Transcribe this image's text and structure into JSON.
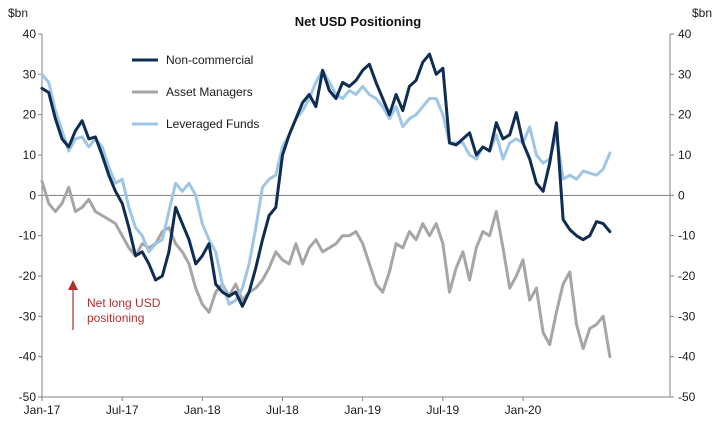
{
  "chart_data": {
    "type": "line",
    "title": "Net USD Positioning",
    "y_unit_left": "$bn",
    "y_unit_right": "$bn",
    "ylim": [
      -50,
      40
    ],
    "yticks": [
      40,
      30,
      20,
      10,
      0,
      -10,
      -20,
      -30,
      -40,
      -50
    ],
    "xlim": [
      0,
      47
    ],
    "x_unit": "months since Jan-17",
    "x_ticks": [
      {
        "x": 0,
        "label": "Jan-17"
      },
      {
        "x": 6,
        "label": "Jul-17"
      },
      {
        "x": 12,
        "label": "Jan-18"
      },
      {
        "x": 18,
        "label": "Jul-18"
      },
      {
        "x": 24,
        "label": "Jan-19"
      },
      {
        "x": 30,
        "label": "Jul-19"
      },
      {
        "x": 36,
        "label": "Jan-20"
      }
    ],
    "grid": false,
    "legend_position": "top-left",
    "annotation": {
      "lines": [
        "Net long USD",
        "positioning"
      ],
      "arrow": "up",
      "color": "#b03030"
    },
    "series": [
      {
        "name": "Non-commercial",
        "color": "#0f2d52",
        "points": [
          [
            0,
            26.5
          ],
          [
            0.5,
            25.5
          ],
          [
            1,
            19
          ],
          [
            1.5,
            14
          ],
          [
            2,
            12
          ],
          [
            2.5,
            16
          ],
          [
            3,
            18.5
          ],
          [
            3.5,
            14
          ],
          [
            4,
            14.5
          ],
          [
            4.5,
            10
          ],
          [
            5,
            5
          ],
          [
            5.5,
            1
          ],
          [
            6,
            -2
          ],
          [
            6.5,
            -8
          ],
          [
            7,
            -15
          ],
          [
            7.5,
            -14
          ],
          [
            8,
            -17
          ],
          [
            8.5,
            -21
          ],
          [
            9,
            -20
          ],
          [
            9.5,
            -14
          ],
          [
            10,
            -3
          ],
          [
            10.5,
            -7
          ],
          [
            11,
            -11
          ],
          [
            11.5,
            -17
          ],
          [
            12,
            -15
          ],
          [
            12.5,
            -12
          ],
          [
            13,
            -22
          ],
          [
            13.5,
            -24
          ],
          [
            14,
            -25
          ],
          [
            14.5,
            -24
          ],
          [
            15,
            -27.5
          ],
          [
            15.5,
            -24
          ],
          [
            16,
            -18
          ],
          [
            16.5,
            -11
          ],
          [
            17,
            -5
          ],
          [
            17.5,
            -3
          ],
          [
            18,
            10
          ],
          [
            18.5,
            15
          ],
          [
            19,
            19
          ],
          [
            19.5,
            23
          ],
          [
            20,
            25
          ],
          [
            20.5,
            22
          ],
          [
            21,
            31
          ],
          [
            21.5,
            26
          ],
          [
            22,
            24
          ],
          [
            22.5,
            28
          ],
          [
            23,
            27
          ],
          [
            23.5,
            28.5
          ],
          [
            24,
            31
          ],
          [
            24.5,
            32.5
          ],
          [
            25,
            28
          ],
          [
            25.5,
            24
          ],
          [
            26,
            20
          ],
          [
            26.5,
            25
          ],
          [
            27,
            21
          ],
          [
            27.5,
            27
          ],
          [
            28,
            28.5
          ],
          [
            28.5,
            33
          ],
          [
            29,
            35
          ],
          [
            29.5,
            30
          ],
          [
            30,
            31.5
          ],
          [
            30.5,
            13
          ],
          [
            31,
            12.5
          ],
          [
            31.5,
            14
          ],
          [
            32,
            15.5
          ],
          [
            32.5,
            10
          ],
          [
            33,
            12
          ],
          [
            33.5,
            11
          ],
          [
            34,
            18
          ],
          [
            34.5,
            14
          ],
          [
            35,
            15
          ],
          [
            35.5,
            20.5
          ],
          [
            36,
            13
          ],
          [
            36.5,
            9
          ],
          [
            37,
            3
          ],
          [
            37.5,
            1
          ],
          [
            38,
            8
          ],
          [
            38.5,
            18
          ],
          [
            39,
            -6
          ],
          [
            39.5,
            -8.5
          ],
          [
            40,
            -10
          ],
          [
            40.5,
            -11
          ],
          [
            41,
            -10
          ],
          [
            41.5,
            -6.5
          ],
          [
            42,
            -7
          ],
          [
            42.5,
            -9
          ]
        ]
      },
      {
        "name": "Asset Managers",
        "color": "#a6a6a6",
        "points": [
          [
            0,
            3.5
          ],
          [
            0.5,
            -2
          ],
          [
            1,
            -4
          ],
          [
            1.5,
            -2
          ],
          [
            2,
            2
          ],
          [
            2.5,
            -4
          ],
          [
            3,
            -3
          ],
          [
            3.5,
            -1
          ],
          [
            4,
            -4
          ],
          [
            4.5,
            -5
          ],
          [
            5,
            -6
          ],
          [
            5.5,
            -7
          ],
          [
            6,
            -10
          ],
          [
            6.5,
            -13
          ],
          [
            7,
            -15
          ],
          [
            7.5,
            -12
          ],
          [
            8,
            -13
          ],
          [
            8.5,
            -12
          ],
          [
            9,
            -9
          ],
          [
            9.5,
            -8
          ],
          [
            10,
            -12
          ],
          [
            10.5,
            -14
          ],
          [
            11,
            -17
          ],
          [
            11.5,
            -23
          ],
          [
            12,
            -27
          ],
          [
            12.5,
            -29
          ],
          [
            13,
            -24
          ],
          [
            13.5,
            -22
          ],
          [
            14,
            -25
          ],
          [
            14.5,
            -22
          ],
          [
            15,
            -26
          ],
          [
            15.5,
            -24
          ],
          [
            16,
            -23
          ],
          [
            16.5,
            -21
          ],
          [
            17,
            -18
          ],
          [
            17.5,
            -14
          ],
          [
            18,
            -16
          ],
          [
            18.5,
            -17
          ],
          [
            19,
            -12
          ],
          [
            19.5,
            -17
          ],
          [
            20,
            -13
          ],
          [
            20.5,
            -11
          ],
          [
            21,
            -14
          ],
          [
            21.5,
            -13
          ],
          [
            22,
            -12
          ],
          [
            22.5,
            -10
          ],
          [
            23,
            -10
          ],
          [
            23.5,
            -9
          ],
          [
            24,
            -12
          ],
          [
            24.5,
            -17
          ],
          [
            25,
            -22
          ],
          [
            25.5,
            -24
          ],
          [
            26,
            -19
          ],
          [
            26.5,
            -12
          ],
          [
            27,
            -13
          ],
          [
            27.5,
            -9
          ],
          [
            28,
            -11
          ],
          [
            28.5,
            -7
          ],
          [
            29,
            -10
          ],
          [
            29.5,
            -7
          ],
          [
            30,
            -12
          ],
          [
            30.5,
            -24
          ],
          [
            31,
            -18
          ],
          [
            31.5,
            -14
          ],
          [
            32,
            -21
          ],
          [
            32.5,
            -13
          ],
          [
            33,
            -9
          ],
          [
            33.5,
            -10
          ],
          [
            34,
            -4
          ],
          [
            34.5,
            -13
          ],
          [
            35,
            -23
          ],
          [
            35.5,
            -20
          ],
          [
            36,
            -16
          ],
          [
            36.5,
            -26
          ],
          [
            37,
            -23
          ],
          [
            37.5,
            -34
          ],
          [
            38,
            -37
          ],
          [
            38.5,
            -29
          ],
          [
            39,
            -22
          ],
          [
            39.5,
            -19
          ],
          [
            40,
            -32
          ],
          [
            40.5,
            -38
          ],
          [
            41,
            -33
          ],
          [
            41.5,
            -32
          ],
          [
            42,
            -30
          ],
          [
            42.5,
            -40
          ]
        ]
      },
      {
        "name": "Leveraged Funds",
        "color": "#9ec6e6",
        "points": [
          [
            0,
            30
          ],
          [
            0.5,
            28
          ],
          [
            1,
            21
          ],
          [
            1.5,
            16
          ],
          [
            2,
            11
          ],
          [
            2.5,
            14
          ],
          [
            3,
            14.5
          ],
          [
            3.5,
            12
          ],
          [
            4,
            14
          ],
          [
            4.5,
            12
          ],
          [
            5,
            7
          ],
          [
            5.5,
            3
          ],
          [
            6,
            4
          ],
          [
            6.5,
            -3
          ],
          [
            7,
            -8
          ],
          [
            7.5,
            -10
          ],
          [
            8,
            -14
          ],
          [
            8.5,
            -12
          ],
          [
            9,
            -11
          ],
          [
            9.5,
            -4
          ],
          [
            10,
            3
          ],
          [
            10.5,
            1
          ],
          [
            11,
            3
          ],
          [
            11.5,
            0
          ],
          [
            12,
            -7
          ],
          [
            12.5,
            -11
          ],
          [
            13,
            -14
          ],
          [
            13.5,
            -22
          ],
          [
            14,
            -27
          ],
          [
            14.5,
            -26
          ],
          [
            15,
            -23
          ],
          [
            15.5,
            -17
          ],
          [
            16,
            -8
          ],
          [
            16.5,
            2
          ],
          [
            17,
            4
          ],
          [
            17.5,
            5
          ],
          [
            18,
            12
          ],
          [
            18.5,
            15
          ],
          [
            19,
            19
          ],
          [
            19.5,
            21
          ],
          [
            20,
            24
          ],
          [
            20.5,
            28
          ],
          [
            21,
            31
          ],
          [
            21.5,
            28
          ],
          [
            22,
            25
          ],
          [
            22.5,
            24
          ],
          [
            23,
            26
          ],
          [
            23.5,
            25
          ],
          [
            24,
            27
          ],
          [
            24.5,
            25
          ],
          [
            25,
            24
          ],
          [
            25.5,
            22
          ],
          [
            26,
            19
          ],
          [
            26.5,
            22
          ],
          [
            27,
            17
          ],
          [
            27.5,
            19
          ],
          [
            28,
            20
          ],
          [
            28.5,
            22
          ],
          [
            29,
            24
          ],
          [
            29.5,
            24
          ],
          [
            30,
            20
          ],
          [
            30.5,
            13
          ],
          [
            31,
            13
          ],
          [
            31.5,
            13
          ],
          [
            32,
            10
          ],
          [
            32.5,
            9
          ],
          [
            33,
            12
          ],
          [
            33.5,
            11
          ],
          [
            34,
            15
          ],
          [
            34.5,
            9
          ],
          [
            35,
            13
          ],
          [
            35.5,
            14
          ],
          [
            36,
            13
          ],
          [
            36.5,
            17
          ],
          [
            37,
            10
          ],
          [
            37.5,
            8
          ],
          [
            38,
            9
          ],
          [
            38.5,
            15
          ],
          [
            39,
            4
          ],
          [
            39.5,
            5
          ],
          [
            40,
            4
          ],
          [
            40.5,
            6
          ],
          [
            41,
            5.5
          ],
          [
            41.5,
            5
          ],
          [
            42,
            6.5
          ],
          [
            42.5,
            10.5
          ]
        ]
      }
    ]
  }
}
